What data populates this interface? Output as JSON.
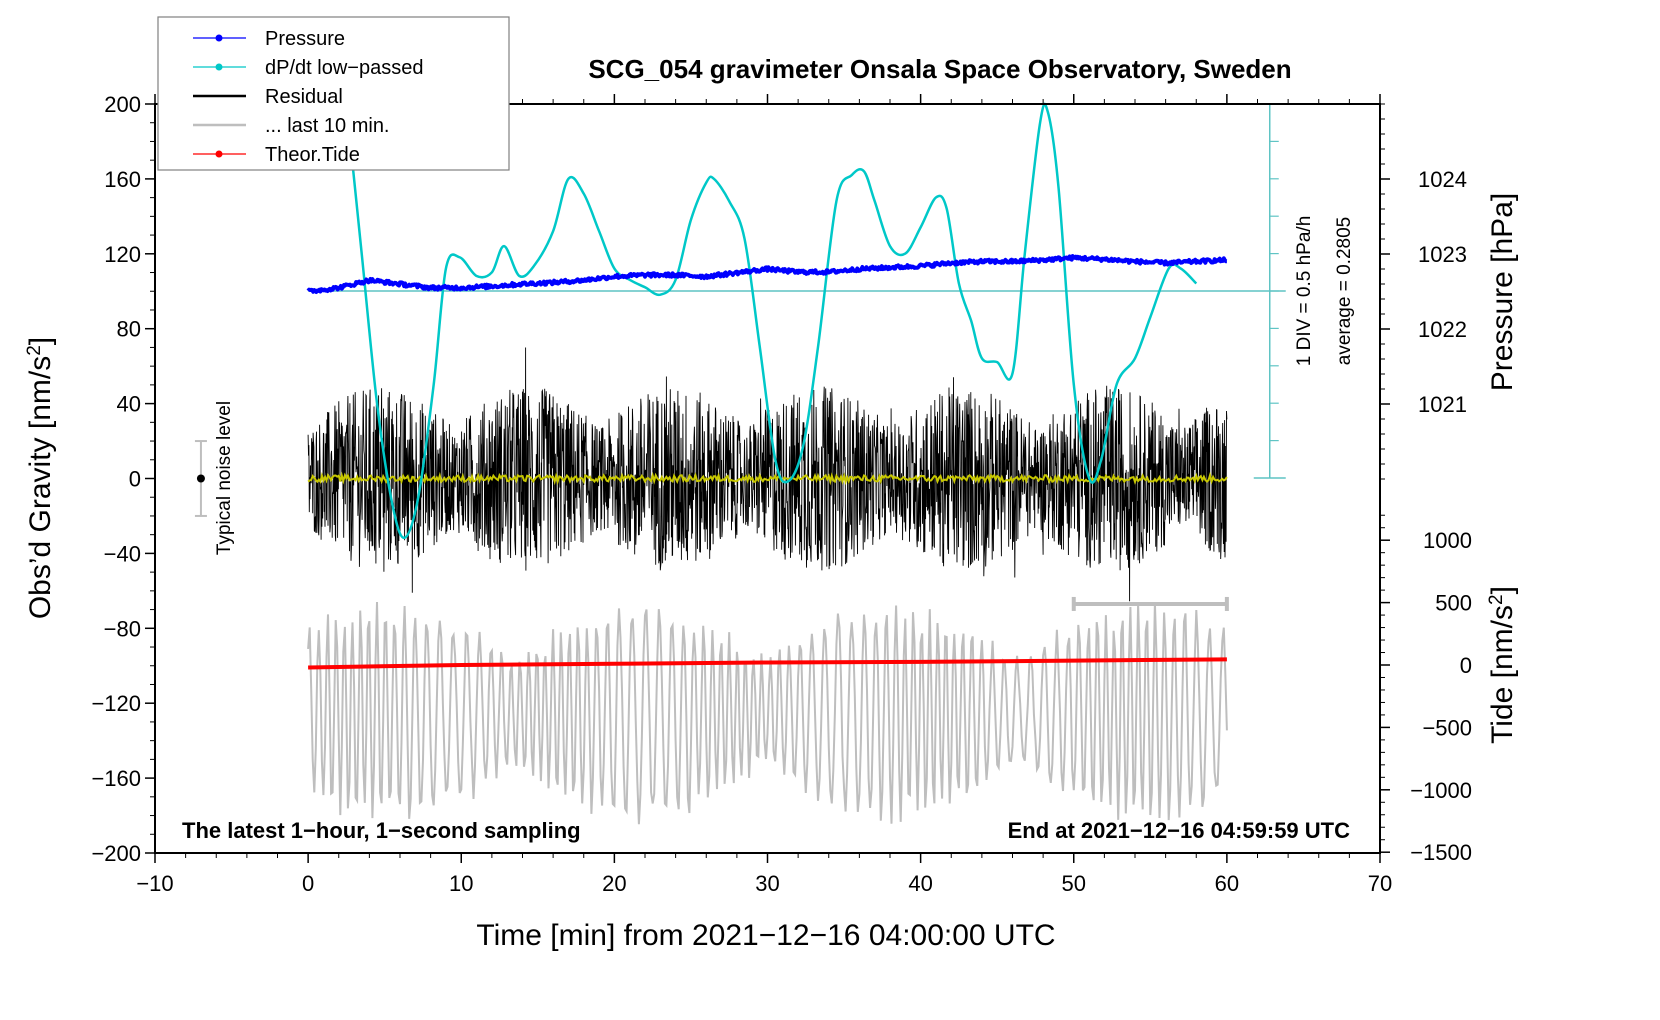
{
  "chart_data": {
    "type": "line",
    "title": "SCG_054 gravimeter Onsala Space Observatory, Sweden",
    "xlabel": "Time [min] from 2021−12−16 04:00:00 UTC",
    "ylabel_left": "Obs’d Gravity [nm/s²]",
    "ylabel_left_base": "Obs’d Gravity [nm/s",
    "ylabel_left_sup": "2",
    "ylabel_left_end": "]",
    "ylabel_right_top": "Pressure [hPa]",
    "ylabel_right_bottom_base": "Tide [nm/s",
    "ylabel_right_bottom_sup": "2",
    "ylabel_right_bottom_end": "]",
    "xlim": [
      -10,
      70
    ],
    "ylim": [
      -200,
      200
    ],
    "pressure_lim_visible": [
      1021,
      1024
    ],
    "tide_lim": [
      -1500,
      1000
    ],
    "x_ticks": [
      "−10",
      "0",
      "10",
      "20",
      "30",
      "40",
      "50",
      "60",
      "70"
    ],
    "x_tick_values": [
      -10,
      0,
      10,
      20,
      30,
      40,
      50,
      60,
      70
    ],
    "y_ticks": [
      "200",
      "160",
      "120",
      "80",
      "40",
      "0",
      "−40",
      "−80",
      "−120",
      "−160",
      "−200"
    ],
    "y_tick_values": [
      200,
      160,
      120,
      80,
      40,
      0,
      -40,
      -80,
      -120,
      -160,
      -200
    ],
    "pressure_ticks": [
      "1024",
      "1023",
      "1022",
      "1021"
    ],
    "pressure_tick_values": [
      1024,
      1023,
      1022,
      1021
    ],
    "tide_ticks": [
      "1000",
      "500",
      "0",
      "−500",
      "−1000",
      "−1500"
    ],
    "tide_tick_values": [
      1000,
      500,
      0,
      -500,
      -1000,
      -1500
    ],
    "grid": false,
    "legend": {
      "placement": "top-left",
      "entries": [
        {
          "label": "Pressure",
          "color": "#0000ff",
          "marker": true
        },
        {
          "label": "dP/dt low−passed",
          "color": "#00c8c8",
          "marker": true
        },
        {
          "label": "Residual",
          "color": "#000000",
          "marker": false
        },
        {
          "label": "... last 10 min.",
          "color": "#bebebe",
          "marker": false
        },
        {
          "label": "Theor.Tide",
          "color": "#ff0000",
          "marker": true
        }
      ]
    },
    "annotations": {
      "bottom_left": "The latest 1−hour, 1−second sampling",
      "bottom_right": "End at 2021−12−16 04:59:59 UTC",
      "noise_label": "Typical noise level",
      "dpdt_scale": "1 DIV = 0.5 hPa/h",
      "dpdt_average": "average = 0.2805"
    },
    "noise_bar": {
      "x": -7,
      "center": 0,
      "half_range": 20
    },
    "last10_bar": {
      "x_start": 50,
      "x_end": 60,
      "y": -67
    },
    "dpdt_scale_bar": {
      "x": 62.8,
      "divisions": 10,
      "zero_y": 100
    },
    "series": [
      {
        "name": "Pressure",
        "unit": "hPa",
        "color": "#0000ff",
        "x": [
          0,
          2,
          4,
          6,
          8,
          10,
          12,
          14,
          16,
          18,
          20,
          22,
          24,
          26,
          28,
          30,
          32,
          34,
          36,
          38,
          40,
          42,
          44,
          46,
          48,
          50,
          52,
          54,
          56,
          58,
          60
        ],
        "y": [
          1022.5,
          1022.55,
          1022.65,
          1022.6,
          1022.55,
          1022.55,
          1022.57,
          1022.6,
          1022.62,
          1022.65,
          1022.7,
          1022.72,
          1022.72,
          1022.7,
          1022.75,
          1022.8,
          1022.76,
          1022.76,
          1022.8,
          1022.82,
          1022.84,
          1022.88,
          1022.9,
          1022.9,
          1022.92,
          1022.95,
          1022.93,
          1022.9,
          1022.88,
          1022.9,
          1022.92
        ]
      },
      {
        "name": "dP/dt low-passed",
        "unit": "DIV (0.5 hPa/h)",
        "color": "#00c8c8",
        "x": [
          2.5,
          3.5,
          4.5,
          5.5,
          6.3,
          7.2,
          8.2,
          9.0,
          9.9,
          11.0,
          12.0,
          12.8,
          13.8,
          14.8,
          16.0,
          17.0,
          18.0,
          19.0,
          20.0,
          21.0,
          22.0,
          23.0,
          24.0,
          25.0,
          26.0,
          26.5,
          27.5,
          28.5,
          29.5,
          30.5,
          31.3,
          32.3,
          33.3,
          34.5,
          35.5,
          36.3,
          37.0,
          38.0,
          39.0,
          40.0,
          41.0,
          41.7,
          42.5,
          43.3,
          44.0,
          45.0,
          46.0,
          46.8,
          47.8,
          48.3,
          49.0,
          50.0,
          51.0,
          51.8,
          52.8,
          54.0,
          55.0,
          56.2,
          57.0,
          58.0
        ],
        "y": [
          5.0,
          1.0,
          -3.0,
          -5.7,
          -6.6,
          -5.5,
          -2.5,
          0.6,
          0.9,
          0.4,
          0.5,
          1.2,
          0.4,
          0.7,
          1.6,
          3.0,
          2.6,
          1.6,
          0.6,
          0.3,
          0.1,
          -0.1,
          0.3,
          1.9,
          2.9,
          3.0,
          2.4,
          1.4,
          -1.5,
          -4.5,
          -5.1,
          -4.2,
          -1.5,
          2.4,
          3.1,
          3.2,
          2.4,
          1.2,
          1.0,
          1.7,
          2.5,
          2.2,
          0.2,
          -0.8,
          -1.8,
          -1.9,
          -2.2,
          1.0,
          4.5,
          4.8,
          2.8,
          -2.5,
          -5.0,
          -4.5,
          -2.5,
          -1.8,
          -0.7,
          0.6,
          0.6,
          0.2
        ]
      },
      {
        "name": "Residual",
        "unit": "nm/s²",
        "color": "#000000",
        "note": "noisy signal, amplitude approx ±50 to ±65 nm/s² over 0–60 min, 1-second sampling",
        "x_range": [
          0,
          60
        ],
        "typical_envelope": 50,
        "max_peak": 88,
        "min_trough": -82
      },
      {
        "name": "Residual smoothed",
        "unit": "nm/s²",
        "color": "#c8c800",
        "x_range": [
          0,
          60
        ],
        "approx_value": 0
      },
      {
        "name": "... last 10 min.",
        "unit": "nm/s² (offset)",
        "color": "#bebebe",
        "note": "oscillating trace, approx centre −125 nm/s², amplitude up to ±65",
        "x_range": [
          0,
          60
        ],
        "center": -125,
        "amplitude": 60
      },
      {
        "name": "Theor.Tide",
        "unit": "nm/s²",
        "color": "#ff0000",
        "x": [
          0,
          10,
          20,
          30,
          40,
          50,
          60
        ],
        "y": [
          -20,
          0,
          10,
          20,
          25,
          35,
          45
        ]
      }
    ]
  }
}
